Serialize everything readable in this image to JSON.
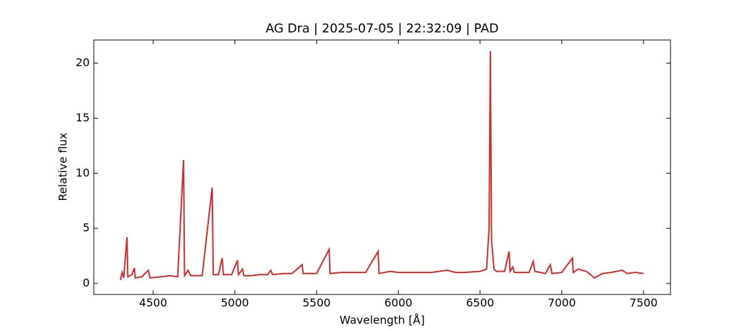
{
  "chart_data": {
    "type": "line",
    "title": "AG Dra | 2025-07-05 | 22:32:09 | PAD",
    "x_label": "Wavelength [Å]",
    "y_label": "Relative flux",
    "xlim": [
      4137,
      7665
    ],
    "ylim": [
      -1.0,
      22.1
    ],
    "xticks": [
      4500,
      5000,
      5500,
      6000,
      6500,
      7000,
      7500
    ],
    "yticks": [
      0,
      5,
      10,
      15,
      20
    ],
    "series": [
      {
        "color": "#d62728",
        "x": [
          4300,
          4310,
          4320,
          4340,
          4345,
          4370,
          4385,
          4390,
          4430,
          4471,
          4480,
          4550,
          4600,
          4650,
          4686,
          4692,
          4713,
          4730,
          4800,
          4861,
          4868,
          4900,
          4922,
          4930,
          4980,
          5016,
          5022,
          5047,
          5055,
          5100,
          5150,
          5200,
          5220,
          5230,
          5300,
          5350,
          5411,
          5418,
          5450,
          5500,
          5577,
          5582,
          5650,
          5700,
          5800,
          5876,
          5882,
          5950,
          6000,
          6100,
          6200,
          6300,
          6350,
          6400,
          6500,
          6540,
          6555,
          6563,
          6570,
          6585,
          6600,
          6650,
          6678,
          6684,
          6700,
          6710,
          6800,
          6825,
          6835,
          6900,
          6930,
          6940,
          7000,
          7065,
          7070,
          7100,
          7150,
          7200,
          7250,
          7300,
          7370,
          7400,
          7450,
          7500
        ],
        "values": [
          0.3,
          1.0,
          0.5,
          4.2,
          0.6,
          0.8,
          1.4,
          0.5,
          0.6,
          1.2,
          0.5,
          0.6,
          0.7,
          0.6,
          11.2,
          0.7,
          1.2,
          0.7,
          0.7,
          8.7,
          0.8,
          0.8,
          2.3,
          0.8,
          0.8,
          2.1,
          0.8,
          1.3,
          0.7,
          0.7,
          0.8,
          0.8,
          1.2,
          0.8,
          0.9,
          0.9,
          1.7,
          0.9,
          0.9,
          0.9,
          3.1,
          0.9,
          1.0,
          1.0,
          1.0,
          2.9,
          0.9,
          1.1,
          1.0,
          1.0,
          1.0,
          1.2,
          1.0,
          1.0,
          1.1,
          1.3,
          5.0,
          21.1,
          4.0,
          1.3,
          1.1,
          1.1,
          2.9,
          1.1,
          1.5,
          1.0,
          1.0,
          2.0,
          1.1,
          0.9,
          1.7,
          0.9,
          1.0,
          2.3,
          1.0,
          1.3,
          1.1,
          0.5,
          0.9,
          1.0,
          1.2,
          0.9,
          1.0,
          0.9
        ]
      }
    ]
  }
}
